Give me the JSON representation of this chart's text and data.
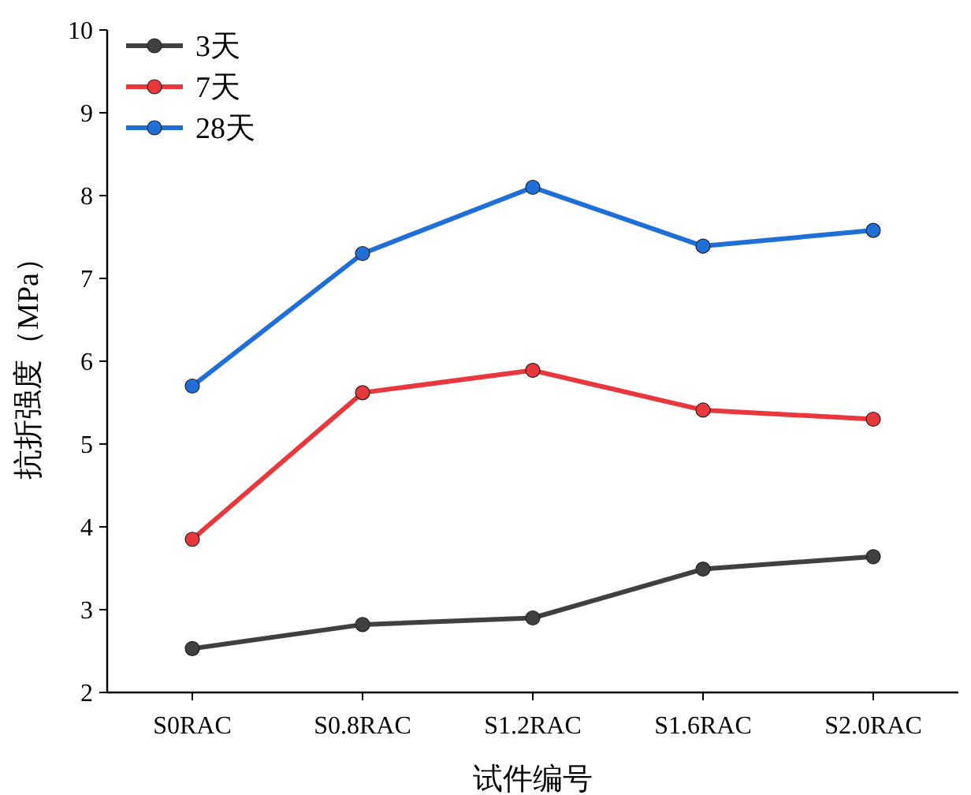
{
  "chart_data": {
    "type": "line",
    "xlabel": "试件编号",
    "ylabel": "抗折强度（MPa）",
    "categories": [
      "S0RAC",
      "S0.8RAC",
      "S1.2RAC",
      "S1.6RAC",
      "S2.0RAC"
    ],
    "ylim": [
      2,
      10
    ],
    "yticks": [
      2,
      3,
      4,
      5,
      6,
      7,
      8,
      9,
      10
    ],
    "marker": "circle",
    "legend": "top left",
    "grid": false,
    "series": [
      {
        "name": "3天",
        "color": "#404040",
        "values": [
          2.53,
          2.82,
          2.9,
          3.49,
          3.64
        ]
      },
      {
        "name": "7天",
        "color": "#e8383d",
        "values": [
          3.85,
          5.62,
          5.89,
          5.41,
          5.3
        ]
      },
      {
        "name": "28天",
        "color": "#1f6fd6",
        "values": [
          5.7,
          7.3,
          8.1,
          7.39,
          7.58
        ]
      }
    ]
  }
}
